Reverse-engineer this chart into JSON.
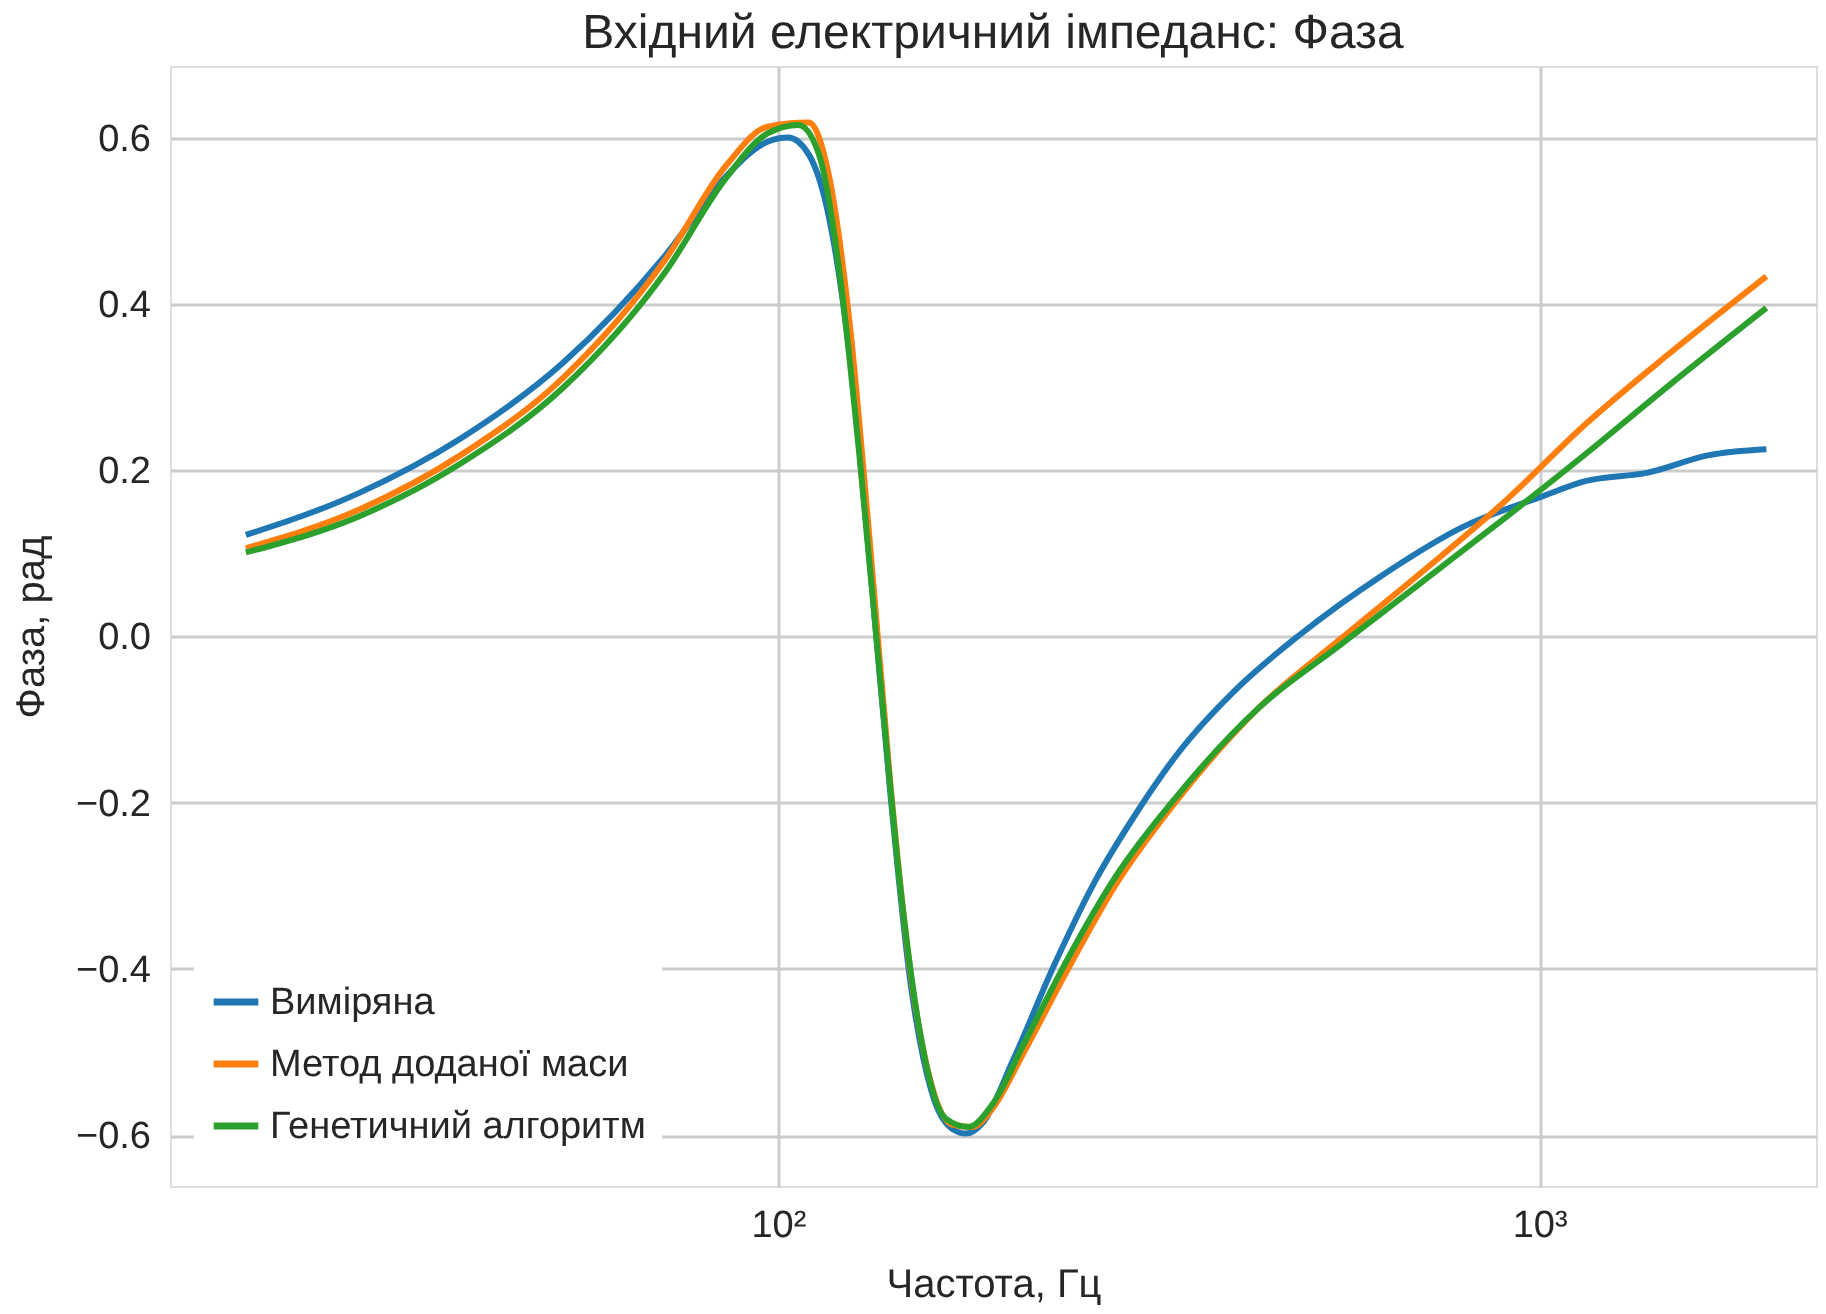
{
  "chart_data": {
    "type": "line",
    "title": "Вхідний електричний імпеданс: Фаза",
    "xlabel": "Частота, Гц",
    "ylabel": "Фаза, рад",
    "log": "x",
    "grid": true,
    "legend": "bottom left",
    "line_style": "solid",
    "marker": "none",
    "xlim": [
      15.9,
      2310
    ],
    "xticks": [
      {
        "value": 100,
        "label": "10²"
      },
      {
        "value": 1000,
        "label": "10³"
      }
    ],
    "ylim": [
      -0.661,
      0.686
    ],
    "yticks": [
      {
        "value": -0.6,
        "label": "−0.6"
      },
      {
        "value": -0.4,
        "label": "−0.4"
      },
      {
        "value": -0.2,
        "label": "−0.2"
      },
      {
        "value": 0,
        "label": "0.0"
      },
      {
        "value": 0.2,
        "label": "0.2"
      },
      {
        "value": 0.4,
        "label": "0.4"
      },
      {
        "value": 0.6,
        "label": "0.6"
      }
    ],
    "series": [
      {
        "name": "Виміряна",
        "color": "#1f77b4",
        "x": [
          20.0,
          28.1,
          38.3,
          52.2,
          71.1,
          85.6,
          96.9,
          103.1,
          109.7,
          116.7,
          124.2,
          132.1,
          140.6,
          149.5,
          159.1,
          169.2,
          176.7,
          185.8,
          203.8,
          230.7,
          261.1,
          295.4,
          334.4,
          402.6,
          484.8,
          620.9,
          795.4,
          1000,
          1153,
          1389,
          1672,
          1988
        ],
        "values": [
          0.122,
          0.172,
          0.238,
          0.329,
          0.458,
          0.554,
          0.595,
          0.6,
          0.58,
          0.504,
          0.339,
          0.086,
          -0.192,
          -0.42,
          -0.547,
          -0.592,
          -0.598,
          -0.585,
          -0.509,
          -0.395,
          -0.294,
          -0.213,
          -0.142,
          -0.061,
          0.002,
          0.073,
          0.132,
          0.167,
          0.187,
          0.197,
          0.218,
          0.225
        ]
      },
      {
        "name": "Метод доданої маси",
        "color": "#ff7f0e",
        "x": [
          20.0,
          28.1,
          38.3,
          52.2,
          71.1,
          85.6,
          96.9,
          109.7,
          116.7,
          124.2,
          132.1,
          140.6,
          149.5,
          159.1,
          169.2,
          180.1,
          191.6,
          210.2,
          237.9,
          277.7,
          334.4,
          428.1,
          548.5,
          702.7,
          900.3,
          1153,
          1477,
          1988
        ],
        "values": [
          0.106,
          0.152,
          0.218,
          0.311,
          0.453,
          0.567,
          0.613,
          0.618,
          0.554,
          0.377,
          0.111,
          -0.18,
          -0.408,
          -0.539,
          -0.587,
          -0.59,
          -0.567,
          -0.501,
          -0.408,
          -0.299,
          -0.197,
          -0.086,
          -0.003,
          0.078,
          0.162,
          0.256,
          0.339,
          0.433
        ]
      },
      {
        "name": "Генетичний алгоритм",
        "color": "#2ca02c",
        "x": [
          20.0,
          28.1,
          38.3,
          52.2,
          71.1,
          85.6,
          96.9,
          106.4,
          113.2,
          120.4,
          128.1,
          136.3,
          145.0,
          154.2,
          166.1,
          177.8,
          191.6,
          210.2,
          237.9,
          277.7,
          334.4,
          428.1,
          548.5,
          702.7,
          900.3,
          1153,
          1477,
          1988
        ],
        "values": [
          0.101,
          0.144,
          0.208,
          0.299,
          0.438,
          0.552,
          0.605,
          0.615,
          0.58,
          0.44,
          0.213,
          -0.053,
          -0.306,
          -0.484,
          -0.58,
          -0.59,
          -0.562,
          -0.491,
          -0.395,
          -0.289,
          -0.192,
          -0.086,
          -0.01,
          0.066,
          0.142,
          0.22,
          0.301,
          0.395
        ]
      }
    ]
  }
}
